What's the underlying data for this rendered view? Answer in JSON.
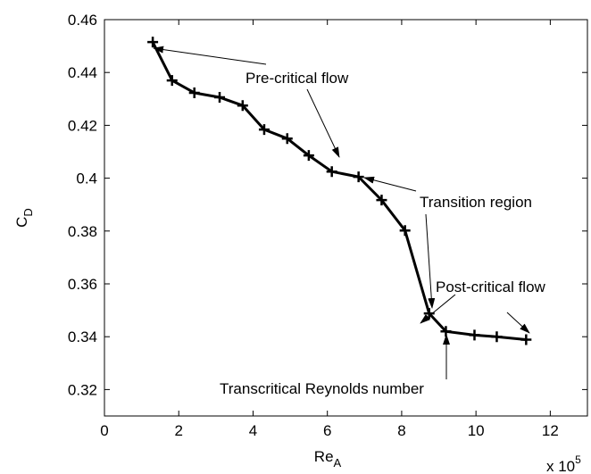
{
  "chart_data": {
    "type": "line",
    "x_label": "Re",
    "x_label_sub": "A",
    "y_label": "C",
    "y_label_sub": "D",
    "x_multiplier": "x 10",
    "x_multiplier_exp": "5",
    "x": [
      1.3,
      1.82,
      2.42,
      3.1,
      3.72,
      4.3,
      4.92,
      5.5,
      6.12,
      6.84,
      7.46,
      8.09,
      8.74,
      9.19,
      9.96,
      10.56,
      11.35
    ],
    "series": [
      {
        "color": "#000000",
        "values": [
          0.4515,
          0.437,
          0.4323,
          0.4306,
          0.4275,
          0.4184,
          0.415,
          0.4086,
          0.4025,
          0.4005,
          0.3917,
          0.3802,
          0.3488,
          0.342,
          0.3406,
          0.34,
          0.3389
        ]
      }
    ],
    "xlim": [
      0,
      13
    ],
    "xticks": [
      0,
      2,
      4,
      6,
      8,
      10,
      12
    ],
    "ylim": [
      0.31,
      0.46
    ],
    "yticks": [
      0.32,
      0.34,
      0.36,
      0.38,
      0.4,
      0.42,
      0.44,
      0.46
    ],
    "grid": false,
    "annotations": [
      "Pre-critical flow",
      "Transition region",
      "Post-critical flow",
      "Transcritical Reynolds number"
    ]
  }
}
